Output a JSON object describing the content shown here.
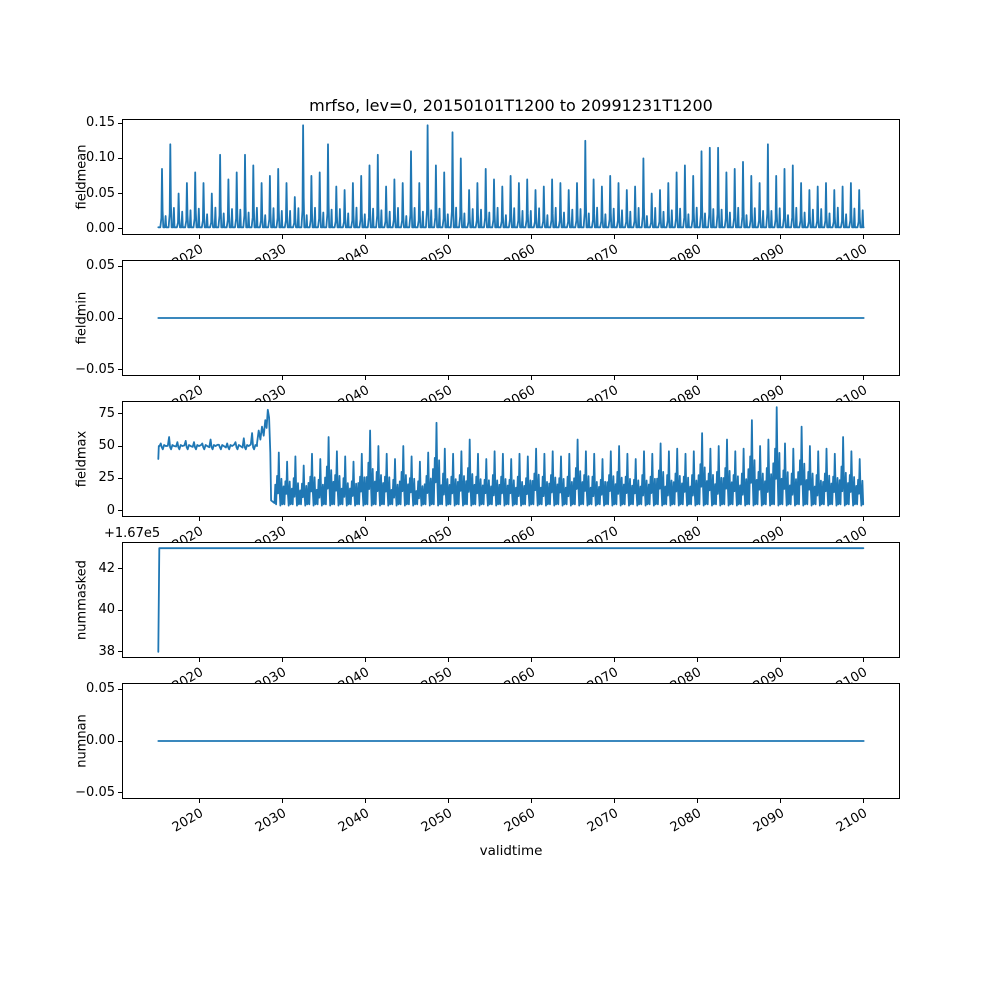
{
  "figure": {
    "title": "mrfso, lev=0, 20150101T1200 to 20991231T1200",
    "background": "#ffffff",
    "line_color": "#1f77b4",
    "axis_color": "#000000",
    "text_color": "#000000"
  },
  "x_axis": {
    "label": "validtime",
    "tick_values": [
      2020,
      2030,
      2040,
      2050,
      2060,
      2070,
      2080,
      2090,
      2100
    ],
    "tick_labels": [
      "2020",
      "2030",
      "2040",
      "2050",
      "2060",
      "2070",
      "2080",
      "2090",
      "2100"
    ],
    "xlim": [
      2010.75,
      2104.25
    ],
    "tick_rotation_deg": 30,
    "data_start": 2015.0,
    "data_end": 2100.0
  },
  "chart_data": [
    {
      "id": "fieldmean",
      "type": "line",
      "ylabel": "fieldmean",
      "ytick_values": [
        0.0,
        0.05,
        0.1,
        0.15
      ],
      "ytick_labels": [
        "0.00",
        "0.05",
        "0.10",
        "0.15"
      ],
      "ylim": [
        -0.0075,
        0.1545
      ],
      "x_start_year": 2015,
      "baseline": 0.002,
      "annual_peaks": [
        0.085,
        0.12,
        0.05,
        0.065,
        0.08,
        0.065,
        0.05,
        0.105,
        0.07,
        0.08,
        0.105,
        0.09,
        0.065,
        0.075,
        0.085,
        0.065,
        0.045,
        0.147,
        0.075,
        0.08,
        0.12,
        0.06,
        0.055,
        0.065,
        0.075,
        0.09,
        0.105,
        0.06,
        0.07,
        0.065,
        0.11,
        0.065,
        0.147,
        0.09,
        0.08,
        0.137,
        0.1,
        0.055,
        0.065,
        0.085,
        0.07,
        0.06,
        0.075,
        0.065,
        0.07,
        0.055,
        0.06,
        0.07,
        0.065,
        0.055,
        0.065,
        0.125,
        0.07,
        0.06,
        0.075,
        0.065,
        0.055,
        0.06,
        0.1,
        0.05,
        0.055,
        0.065,
        0.08,
        0.09,
        0.075,
        0.11,
        0.115,
        0.115,
        0.08,
        0.085,
        0.095,
        0.075,
        0.065,
        0.12,
        0.075,
        0.085,
        0.09,
        0.065,
        0.055,
        0.06,
        0.065,
        0.055,
        0.06,
        0.065,
        0.055
      ]
    },
    {
      "id": "fieldmin",
      "type": "line",
      "ylabel": "fieldmin",
      "ytick_values": [
        -0.05,
        0.0,
        0.05
      ],
      "ytick_labels": [
        "−0.05",
        "0.00",
        "0.05"
      ],
      "ylim": [
        -0.055,
        0.055
      ],
      "points": [
        [
          2015.0,
          0.0
        ],
        [
          2100.0,
          0.0
        ]
      ]
    },
    {
      "id": "fieldmax",
      "type": "line",
      "ylabel": "fieldmax",
      "ytick_values": [
        0,
        25,
        50,
        75
      ],
      "ytick_labels": [
        "0",
        "25",
        "50",
        "75"
      ],
      "ylim": [
        -4,
        84
      ],
      "phase1": {
        "start_year": 2015,
        "base": 50,
        "start_dip": 40,
        "bump_peaks": [
          52,
          57,
          53,
          54,
          53,
          52,
          55,
          51,
          52,
          53,
          56,
          60
        ]
      },
      "phase2_points": [
        [
          2026.9,
          52
        ],
        [
          2027.1,
          62
        ],
        [
          2027.3,
          55
        ],
        [
          2027.5,
          65
        ],
        [
          2027.7,
          58
        ],
        [
          2027.9,
          70
        ],
        [
          2028.05,
          64
        ],
        [
          2028.2,
          78
        ],
        [
          2028.35,
          72
        ],
        [
          2028.5,
          45
        ],
        [
          2028.6,
          8
        ]
      ],
      "phase3": {
        "start_year": 2029,
        "min": 4,
        "annual_peaks": [
          45,
          38,
          42,
          35,
          44,
          40,
          57,
          46,
          42,
          38,
          44,
          62,
          50,
          44,
          40,
          50,
          42,
          38,
          45,
          68,
          48,
          44,
          46,
          55,
          44,
          40,
          46,
          44,
          40,
          44,
          42,
          48,
          44,
          46,
          42,
          44,
          55,
          46,
          44,
          40,
          46,
          50,
          44,
          40,
          46,
          44,
          52,
          46,
          48,
          44,
          46,
          60,
          48,
          50,
          55,
          46,
          48,
          70,
          50,
          55,
          80,
          52,
          48,
          65,
          50,
          46,
          48,
          44,
          57,
          46,
          40
        ]
      }
    },
    {
      "id": "nummasked",
      "type": "line",
      "ylabel": "nummasked",
      "offset_text": "+1.67e5",
      "ytick_values": [
        38,
        40,
        42
      ],
      "ytick_labels": [
        "38",
        "40",
        "42"
      ],
      "ylim": [
        37.75,
        43.25
      ],
      "points": [
        [
          2015.0,
          38
        ],
        [
          2015.12,
          43
        ],
        [
          2099.96,
          43
        ]
      ],
      "note_full_values": [
        167038,
        167043
      ]
    },
    {
      "id": "numnan",
      "type": "line",
      "ylabel": "numnan",
      "ytick_values": [
        -0.05,
        0.0,
        0.05
      ],
      "ytick_labels": [
        "−0.05",
        "0.00",
        "0.05"
      ],
      "ylim": [
        -0.055,
        0.055
      ],
      "points": [
        [
          2015.0,
          0.0
        ],
        [
          2100.0,
          0.0
        ]
      ]
    }
  ]
}
